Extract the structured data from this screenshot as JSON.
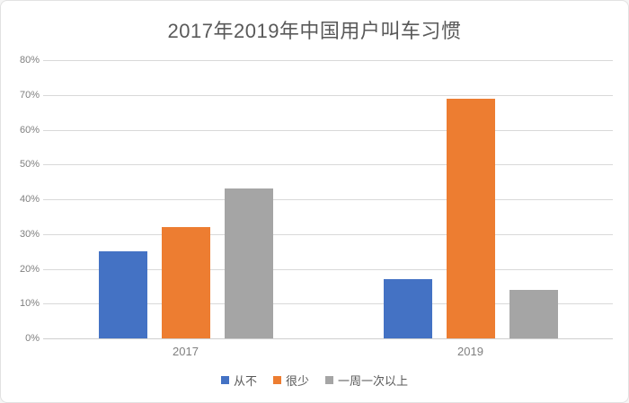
{
  "chart_data": {
    "type": "bar",
    "title": "2017年2019年中国用户叫车习惯",
    "categories": [
      "2017",
      "2019"
    ],
    "series": [
      {
        "name": "从不",
        "color": "#4472c4",
        "values": [
          25,
          17
        ]
      },
      {
        "name": "很少",
        "color": "#ed7d31",
        "values": [
          32,
          69
        ]
      },
      {
        "name": "一周一次以上",
        "color": "#a5a5a5",
        "values": [
          43,
          14
        ]
      }
    ],
    "ylim": [
      0,
      80
    ],
    "ytick_step": 10,
    "ytick_labels": [
      "0%",
      "10%",
      "20%",
      "30%",
      "40%",
      "50%",
      "60%",
      "70%",
      "80%"
    ],
    "xlabel": "",
    "ylabel": "",
    "grid": "horizontal",
    "legend_position": "bottom"
  },
  "colors": {
    "title_text": "#595959",
    "axis_text": "#7f7f7f",
    "gridline": "#d9d9d9",
    "background": "#ffffff"
  }
}
